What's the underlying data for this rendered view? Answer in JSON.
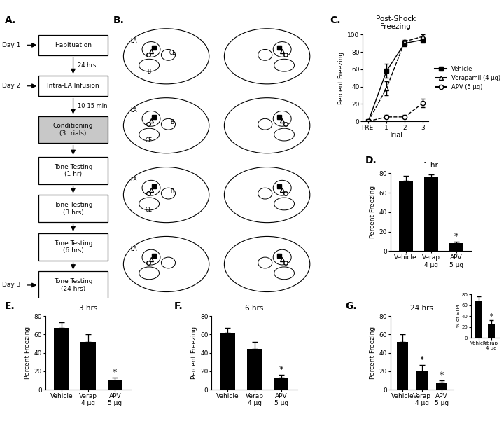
{
  "panel_labels": [
    "A.",
    "B.",
    "C.",
    "D.",
    "E.",
    "F.",
    "G."
  ],
  "flowchart": {
    "steps": [
      "Habituation",
      "Intra-LA Infusion",
      "Conditioning\n(3 trials)",
      "Tone Testing\n(1 hr)",
      "Tone Testing\n(3 hrs)",
      "Tone Testing\n(6 hrs)",
      "Tone Testing\n(24 hrs)"
    ],
    "highlight": 2,
    "days": [
      {
        "label": "Day 1",
        "step": 0
      },
      {
        "label": "Day 2",
        "step": 1
      },
      {
        "label": "Day 3",
        "step": 6
      }
    ],
    "intervals": [
      {
        "after_step": 0,
        "label": "24 hrs"
      },
      {
        "after_step": 1,
        "label": "10-15 min"
      }
    ]
  },
  "atlas": {
    "sections": [
      [
        "LA",
        "B",
        "CE"
      ],
      [
        "LA",
        "CE",
        "B"
      ],
      [
        "LA",
        "CE",
        "B"
      ],
      [
        "LA"
      ]
    ]
  },
  "chart_data": [
    {
      "type": "line",
      "title": "Post-Shock\nFreezing",
      "xlabel": "Trial",
      "ylabel": "Percent Freezing",
      "categories": [
        "PRE-",
        "1",
        "2",
        "3"
      ],
      "ylim": [
        0,
        100
      ],
      "yticks": [
        0,
        20,
        40,
        60,
        80,
        100
      ],
      "legend": "center left",
      "series": [
        {
          "name": "Vehicle",
          "color": "#000000",
          "marker": "square",
          "line_style": "solid",
          "values": [
            0,
            58,
            90,
            94
          ],
          "errors": [
            0,
            8,
            3,
            3
          ]
        },
        {
          "name": "Verapamil (4 µg)",
          "color": "#000000",
          "marker": "triangle_open",
          "line_style": "dashed",
          "values": [
            0,
            38,
            92,
            98
          ],
          "errors": [
            0,
            8,
            2,
            2
          ]
        },
        {
          "name": "APV (5 µg)",
          "color": "#000000",
          "marker": "circle_open",
          "line_style": "dashed",
          "values": [
            0,
            5,
            5,
            21
          ],
          "errors": [
            0,
            2,
            2,
            5
          ]
        }
      ]
    },
    {
      "type": "bar",
      "title": "1 hr",
      "ylabel": "Percent Freezing",
      "categories": [
        "Vehicle",
        "Verap\n4 µg",
        "APV\n5 µg"
      ],
      "values": [
        72,
        76,
        8
      ],
      "errors": [
        5,
        3,
        1.5
      ],
      "significance": [
        null,
        null,
        "*"
      ],
      "color": "#000000",
      "ylim": [
        0,
        80
      ],
      "yticks": [
        0,
        20,
        40,
        60,
        80
      ]
    },
    {
      "type": "bar",
      "title": "3 hrs",
      "ylabel": "Percent Freezing",
      "categories": [
        "Vehicle",
        "Verap\n4 µg",
        "APV\n5 µg"
      ],
      "values": [
        67,
        52,
        10
      ],
      "errors": [
        6,
        8,
        3
      ],
      "significance": [
        null,
        null,
        "*"
      ],
      "color": "#000000",
      "ylim": [
        0,
        80
      ],
      "yticks": [
        0,
        20,
        40,
        60,
        80
      ]
    },
    {
      "type": "bar",
      "title": "6 hrs",
      "ylabel": "Percent Freezing",
      "categories": [
        "Vehicle",
        "Verap\n4 µg",
        "APV\n5 µg"
      ],
      "values": [
        62,
        44,
        13
      ],
      "errors": [
        5,
        8,
        3
      ],
      "significance": [
        null,
        null,
        "*"
      ],
      "color": "#000000",
      "ylim": [
        0,
        80
      ],
      "yticks": [
        0,
        20,
        40,
        60,
        80
      ]
    },
    {
      "type": "bar",
      "title": "24 hrs",
      "ylabel": "Percent Freezing",
      "categories": [
        "Vehicle",
        "Verap\n4 µg",
        "APV\n5 µg"
      ],
      "values": [
        52,
        20,
        8
      ],
      "errors": [
        8,
        7,
        2
      ],
      "significance": [
        null,
        "*",
        "*"
      ],
      "color": "#000000",
      "ylim": [
        0,
        80
      ],
      "yticks": [
        0,
        20,
        40,
        60,
        80
      ]
    },
    {
      "type": "bar",
      "ylabel": "% of STM",
      "categories": [
        "Vehicle",
        "Verap\n4 µg"
      ],
      "values": [
        67,
        24
      ],
      "errors": [
        10,
        8
      ],
      "significance": [
        null,
        "*"
      ],
      "color": "#000000",
      "ylim": [
        0,
        80
      ],
      "yticks": [
        0,
        20,
        40,
        60,
        80
      ]
    }
  ]
}
